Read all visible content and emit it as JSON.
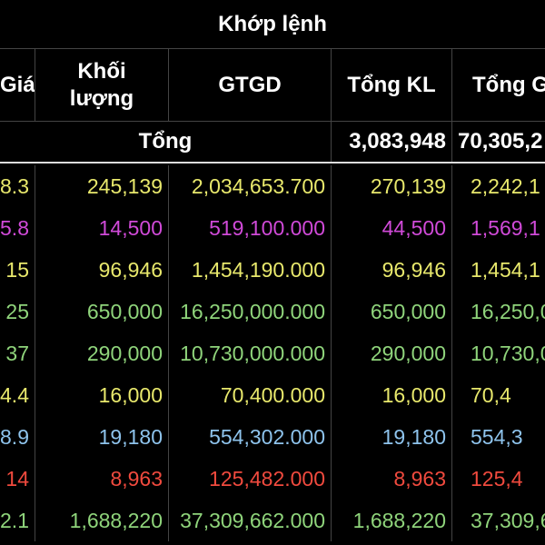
{
  "header": {
    "title": "Khớp lệnh",
    "columns": {
      "gia": "Giá",
      "khoi_luong_1": "Khối",
      "khoi_luong_2": "lượng",
      "gtgd": "GTGD",
      "tong_kl": "Tổng KL",
      "tong_gtgd": "Tổng G"
    }
  },
  "totals": {
    "label": "Tổng",
    "tong_kl": "3,083,948",
    "tong_gtgd": "70,305,2"
  },
  "colors": {
    "yellow": "#e8e86c",
    "purple": "#d04ad8",
    "green": "#8fd47b",
    "blue": "#8ec3ec",
    "red": "#f04a3e"
  },
  "rows": [
    {
      "gia": "8.3",
      "kl": "245,139",
      "gtgd": "2,034,653.700",
      "tong_kl": "270,139",
      "tong_gtgd": "2,242,1",
      "color": "yellow"
    },
    {
      "gia": "5.8",
      "kl": "14,500",
      "gtgd": "519,100.000",
      "tong_kl": "44,500",
      "tong_gtgd": "1,569,1",
      "color": "purple"
    },
    {
      "gia": "15",
      "kl": "96,946",
      "gtgd": "1,454,190.000",
      "tong_kl": "96,946",
      "tong_gtgd": "1,454,1",
      "color": "yellow"
    },
    {
      "gia": "25",
      "kl": "650,000",
      "gtgd": "16,250,000.000",
      "tong_kl": "650,000",
      "tong_gtgd": "16,250,0",
      "color": "green"
    },
    {
      "gia": "37",
      "kl": "290,000",
      "gtgd": "10,730,000.000",
      "tong_kl": "290,000",
      "tong_gtgd": "10,730,0",
      "color": "green"
    },
    {
      "gia": "4.4",
      "kl": "16,000",
      "gtgd": "70,400.000",
      "tong_kl": "16,000",
      "tong_gtgd": "70,4",
      "color": "yellow"
    },
    {
      "gia": "8.9",
      "kl": "19,180",
      "gtgd": "554,302.000",
      "tong_kl": "19,180",
      "tong_gtgd": "554,3",
      "color": "blue"
    },
    {
      "gia": "14",
      "kl": "8,963",
      "gtgd": "125,482.000",
      "tong_kl": "8,963",
      "tong_gtgd": "125,4",
      "color": "red"
    },
    {
      "gia": "2.1",
      "kl": "1,688,220",
      "gtgd": "37,309,662.000",
      "tong_kl": "1,688,220",
      "tong_gtgd": "37,309,6",
      "color": "green"
    }
  ]
}
